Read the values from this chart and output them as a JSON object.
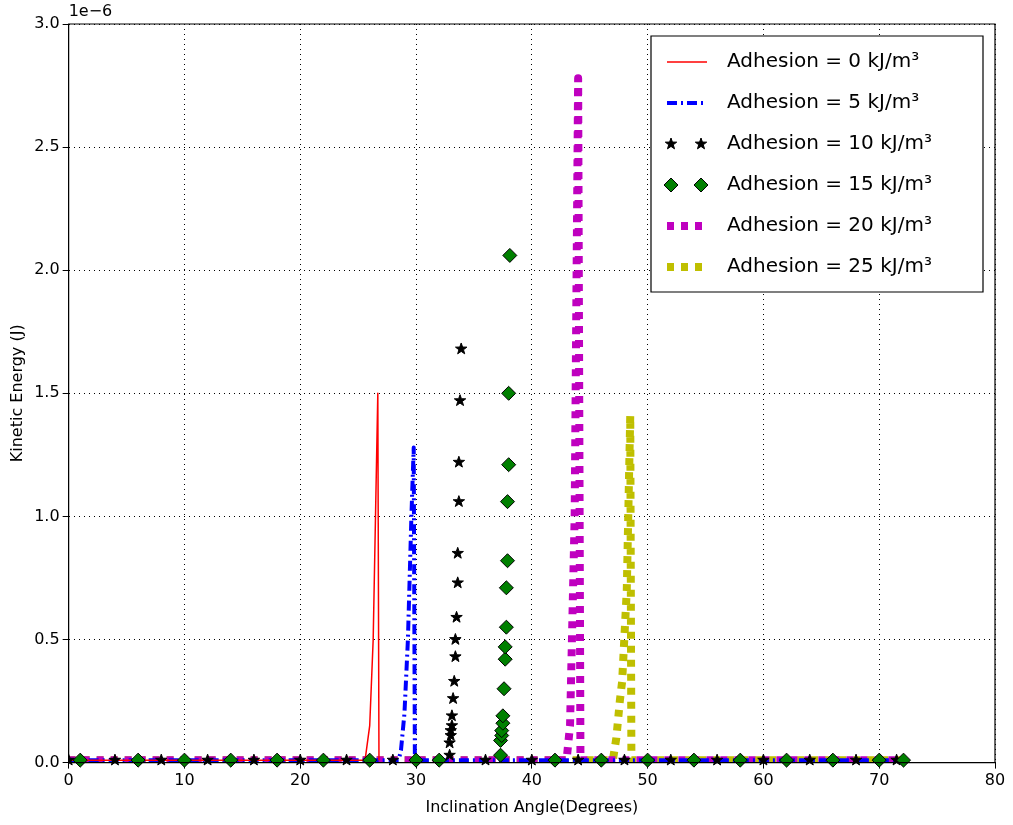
{
  "chart_data": {
    "type": "line",
    "xlabel": "Inclination Angle(Degrees)",
    "ylabel": "Kinetic Energy (J)",
    "annotations": [
      "1e−6"
    ],
    "xlim": [
      0,
      80
    ],
    "xticks": [
      0,
      10,
      20,
      30,
      40,
      50,
      60,
      70,
      80
    ],
    "ylim": [
      0,
      3.0
    ],
    "yticks": [
      {
        "value": 0,
        "label": "0.0"
      },
      {
        "value": 0.5,
        "label": "0.5"
      },
      {
        "value": 1.0,
        "label": "1.0"
      },
      {
        "value": 1.5,
        "label": "1.5"
      },
      {
        "value": 2.0,
        "label": "2.0"
      },
      {
        "value": 2.5,
        "label": "2.5"
      },
      {
        "value": 3.0,
        "label": "3.0"
      }
    ],
    "grid": true,
    "legend": "top right",
    "series": [
      {
        "name": "Adhesion = 0 kJ/m³",
        "color": "#ff0000",
        "marker": "none",
        "line_style": "solid",
        "x": [
          0,
          25.6,
          26.0,
          26.3,
          26.7,
          26.8
        ],
        "values": [
          0.01,
          0.01,
          0.15,
          0.5,
          1.5,
          0.01
        ]
      },
      {
        "name": "Adhesion = 5 kJ/m³",
        "color": "#0000ff",
        "marker": "none",
        "line_style": "dashed",
        "x": [
          0,
          28.5,
          28.7,
          29.0,
          29.3,
          29.6,
          29.8,
          29.9,
          72
        ],
        "values": [
          0.01,
          0.01,
          0.05,
          0.2,
          0.5,
          1.0,
          1.28,
          0.01,
          0.01
        ]
      },
      {
        "name": "Adhesion = 10 kJ/m³",
        "color": "#000000",
        "type": "scatter",
        "marker": "star",
        "x": [
          0,
          4,
          8,
          12,
          16,
          20,
          24,
          28,
          32.9,
          32.9,
          33.0,
          33.0,
          33.1,
          33.1,
          33.2,
          33.3,
          33.4,
          33.4,
          33.5,
          33.6,
          33.6,
          33.7,
          33.7,
          33.8,
          33.9,
          36,
          40,
          44,
          48,
          52,
          56,
          60,
          64,
          68,
          71.5
        ],
        "values": [
          0.01,
          0.01,
          0.01,
          0.01,
          0.01,
          0.01,
          0.01,
          0.01,
          0.03,
          0.08,
          0.11,
          0.13,
          0.15,
          0.19,
          0.26,
          0.33,
          0.43,
          0.5,
          0.59,
          0.73,
          0.85,
          1.06,
          1.22,
          1.47,
          1.68,
          0.01,
          0.01,
          0.01,
          0.01,
          0.01,
          0.01,
          0.01,
          0.01,
          0.01,
          0.01
        ]
      },
      {
        "name": "Adhesion = 15 kJ/m³",
        "color": "#008000",
        "type": "scatter",
        "marker": "diamond",
        "x": [
          1,
          6,
          10,
          14,
          18,
          22,
          26,
          30,
          32,
          37.3,
          37.3,
          37.4,
          37.4,
          37.5,
          37.5,
          37.6,
          37.7,
          37.7,
          37.8,
          37.8,
          37.9,
          37.9,
          38.0,
          38.0,
          38.1,
          42,
          46,
          50,
          54,
          58,
          62,
          66,
          70,
          72.1
        ],
        "values": [
          0.01,
          0.01,
          0.01,
          0.01,
          0.01,
          0.01,
          0.01,
          0.01,
          0.01,
          0.03,
          0.09,
          0.11,
          0.13,
          0.16,
          0.19,
          0.3,
          0.42,
          0.47,
          0.55,
          0.71,
          0.82,
          1.06,
          1.21,
          1.5,
          2.06,
          0.01,
          0.01,
          0.01,
          0.01,
          0.01,
          0.01,
          0.01,
          0.01,
          0.01
        ]
      },
      {
        "name": "Adhesion = 20 kJ/m³",
        "color": "#bf00bf",
        "marker": "none",
        "line_style": "dotted",
        "x": [
          0,
          43.0,
          43.3,
          43.7,
          44.0,
          44.2,
          72
        ],
        "values": [
          0.01,
          0.01,
          0.15,
          1.0,
          2.78,
          0.01,
          0.01
        ]
      },
      {
        "name": "Adhesion = 25 kJ/m³",
        "color": "#bfbf00",
        "marker": "none",
        "line_style": "dotted",
        "x": [
          0,
          47.0,
          47.3,
          47.6,
          47.8,
          48.2,
          48.5,
          48.6,
          72
        ],
        "values": [
          0.01,
          0.01,
          0.1,
          0.25,
          0.33,
          0.7,
          1.41,
          0.01,
          0.01
        ]
      }
    ]
  }
}
